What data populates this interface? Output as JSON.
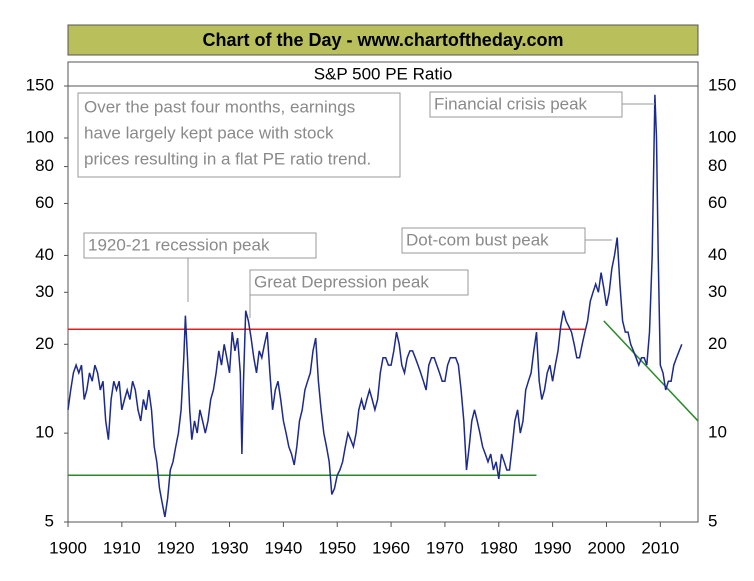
{
  "chart_data": {
    "type": "line",
    "header": "Chart of the Day - www.chartoftheday.com",
    "title": "S&P 500 PE Ratio",
    "log_scale": true,
    "xlim": [
      1900,
      2017
    ],
    "xticks": [
      1900,
      1910,
      1920,
      1930,
      1940,
      1950,
      1960,
      1970,
      1980,
      1990,
      2000,
      2010
    ],
    "ylim": [
      5,
      150
    ],
    "yticks": [
      5,
      10,
      20,
      30,
      40,
      60,
      80,
      100,
      150
    ],
    "series": [
      {
        "color": "#1c2a8c",
        "x": [
          1900,
          1900.5,
          1901,
          1901.5,
          1902,
          1902.5,
          1903,
          1903.5,
          1904,
          1904.5,
          1905,
          1905.5,
          1906,
          1906.5,
          1907,
          1907.5,
          1908,
          1908.5,
          1909,
          1909.5,
          1910,
          1910.5,
          1911,
          1911.5,
          1912,
          1912.5,
          1913,
          1913.5,
          1914,
          1914.5,
          1915,
          1915.5,
          1916,
          1916.5,
          1917,
          1917.5,
          1918,
          1918.5,
          1919,
          1919.5,
          1920,
          1920.5,
          1921,
          1921.5,
          1921.8,
          1922.2,
          1922.6,
          1923,
          1923.5,
          1924,
          1924.5,
          1925,
          1925.5,
          1926,
          1926.5,
          1927,
          1927.5,
          1928,
          1928.5,
          1929,
          1929.5,
          1930,
          1930.5,
          1931,
          1931.5,
          1932,
          1932.3,
          1932.6,
          1933,
          1933.5,
          1934,
          1934.5,
          1935,
          1935.5,
          1936,
          1936.5,
          1937,
          1937.5,
          1938,
          1938.5,
          1939,
          1939.5,
          1940,
          1940.5,
          1941,
          1941.5,
          1942,
          1942.5,
          1943,
          1943.5,
          1944,
          1944.5,
          1945,
          1945.5,
          1946,
          1946.5,
          1947,
          1947.5,
          1948,
          1948.5,
          1949,
          1949.5,
          1950,
          1950.5,
          1951,
          1951.5,
          1952,
          1952.5,
          1953,
          1953.5,
          1954,
          1954.5,
          1955,
          1955.5,
          1956,
          1956.5,
          1957,
          1957.5,
          1958,
          1958.5,
          1959,
          1959.5,
          1960,
          1960.5,
          1961,
          1961.5,
          1962,
          1962.5,
          1963,
          1963.5,
          1964,
          1964.5,
          1965,
          1965.5,
          1966,
          1966.5,
          1967,
          1967.5,
          1968,
          1968.5,
          1969,
          1969.5,
          1970,
          1970.5,
          1971,
          1971.5,
          1972,
          1972.5,
          1973,
          1973.5,
          1974,
          1974.5,
          1975,
          1975.5,
          1976,
          1976.5,
          1977,
          1977.5,
          1978,
          1978.5,
          1979,
          1979.5,
          1980,
          1980.5,
          1981,
          1981.5,
          1982,
          1982.5,
          1983,
          1983.5,
          1984,
          1984.5,
          1985,
          1985.5,
          1986,
          1986.5,
          1987,
          1987.5,
          1988,
          1988.5,
          1989,
          1989.5,
          1990,
          1990.5,
          1991,
          1991.5,
          1992,
          1992.5,
          1993,
          1993.5,
          1994,
          1994.5,
          1995,
          1995.5,
          1996,
          1996.5,
          1997,
          1997.5,
          1998,
          1998.5,
          1999,
          1999.5,
          2000,
          2000.5,
          2001,
          2001.5,
          2002,
          2002.5,
          2003,
          2003.5,
          2004,
          2004.5,
          2005,
          2005.5,
          2006,
          2006.5,
          2007,
          2007.5,
          2008,
          2008.5,
          2009,
          2009.3,
          2009.6,
          2010,
          2010.5,
          2011,
          2011.5,
          2012,
          2012.5,
          2013,
          2013.5,
          2014
        ],
        "values": [
          12,
          14,
          16,
          17,
          16,
          17,
          13,
          14,
          16,
          15,
          17,
          16,
          14,
          15,
          11,
          9.5,
          13,
          15,
          14,
          15,
          12,
          13,
          14,
          13,
          15,
          14,
          12,
          11,
          13,
          12,
          14,
          12,
          9,
          8,
          6.5,
          5.8,
          5.2,
          6,
          7.5,
          8,
          9,
          10,
          12,
          18,
          25,
          18,
          12,
          9.5,
          11,
          10,
          12,
          11,
          10,
          11,
          13,
          14,
          16,
          19,
          17,
          20,
          18,
          16,
          22,
          19,
          21,
          16,
          8.5,
          15,
          26,
          24,
          21,
          18,
          16,
          19,
          18,
          20,
          22,
          16,
          12,
          14,
          15,
          13,
          11,
          10,
          9,
          8.5,
          7.8,
          9,
          11,
          12,
          14,
          15,
          16,
          19,
          21,
          15,
          12,
          10,
          9,
          8,
          6.2,
          6.5,
          7.2,
          7.5,
          8,
          9,
          10,
          9.5,
          9,
          10,
          12,
          13,
          12,
          13,
          14,
          13,
          12,
          13,
          16,
          18,
          18,
          17,
          17,
          19,
          22,
          20,
          17,
          16,
          18,
          19,
          19,
          18,
          17,
          16,
          15,
          14,
          17,
          18,
          18,
          17,
          16,
          15,
          15,
          17,
          18,
          18,
          18,
          17,
          14,
          11,
          7.5,
          9,
          11,
          12,
          11,
          10,
          9,
          8.5,
          8,
          8.5,
          7.5,
          8,
          7,
          8.5,
          8,
          7.5,
          7.5,
          9,
          11,
          12,
          10,
          11,
          14,
          15,
          16,
          19,
          22,
          15,
          13,
          14,
          16,
          17,
          15,
          17,
          19,
          23,
          26,
          24,
          23,
          22,
          20,
          18,
          18,
          20,
          22,
          24,
          28,
          30,
          32,
          30,
          35,
          31,
          27,
          30,
          36,
          40,
          46,
          32,
          24,
          22,
          22,
          20,
          19,
          18,
          17,
          18,
          18,
          17,
          22,
          40,
          140,
          100,
          40,
          17,
          16,
          14,
          15,
          15,
          17,
          18,
          19,
          20
        ]
      }
    ],
    "reference_lines": [
      {
        "color": "#e02020",
        "x": [
          1900,
          1996
        ],
        "values": [
          22.5,
          22.5
        ]
      },
      {
        "color": "#2a8a2a",
        "x": [
          1900,
          1987
        ],
        "values": [
          7.2,
          7.2
        ]
      },
      {
        "color": "#2a8a2a",
        "x": [
          1999.5,
          2017
        ],
        "values": [
          24,
          11
        ]
      }
    ],
    "note": [
      "Over the past four months, earnings",
      "have largely kept pace with stock",
      "prices resulting in a flat PE ratio trend."
    ],
    "annotations": [
      "1920-21 recession peak",
      "Great Depression peak",
      "Dot-com bust peak",
      "Financial crisis peak"
    ]
  }
}
